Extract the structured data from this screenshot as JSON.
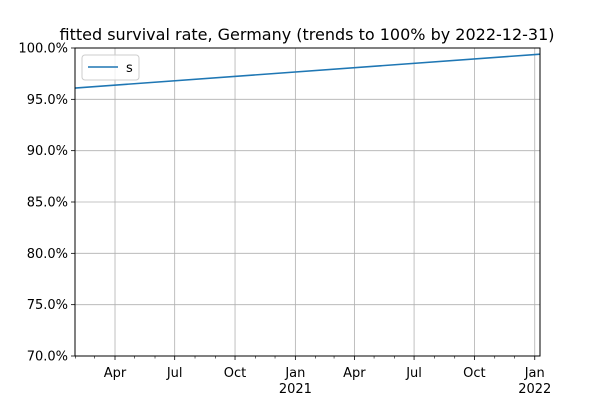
{
  "chart_data": {
    "type": "line",
    "title": "fitted survival rate, Germany (trends to 100% by 2022-12-31)",
    "xlabel": "",
    "ylabel": "",
    "xlim": [
      "2020-01-31",
      "2022-01-09"
    ],
    "ylim": [
      70.0,
      100.0
    ],
    "grid": true,
    "legend_position": "top-left",
    "colors": {
      "series": "#1f77b4",
      "grid": "#b0b0b0"
    },
    "y_ticks": [
      {
        "value": 70,
        "label": "70.0%"
      },
      {
        "value": 75,
        "label": "75.0%"
      },
      {
        "value": 80,
        "label": "80.0%"
      },
      {
        "value": 85,
        "label": "85.0%"
      },
      {
        "value": 90,
        "label": "90.0%"
      },
      {
        "value": 95,
        "label": "95.0%"
      },
      {
        "value": 100,
        "label": "100.0%"
      }
    ],
    "x_ticks": [
      {
        "date": "2020-04-01",
        "label": "Apr",
        "sublabel": ""
      },
      {
        "date": "2020-07-01",
        "label": "Jul",
        "sublabel": ""
      },
      {
        "date": "2020-10-01",
        "label": "Oct",
        "sublabel": ""
      },
      {
        "date": "2021-01-01",
        "label": "Jan",
        "sublabel": "2021"
      },
      {
        "date": "2021-04-01",
        "label": "Apr",
        "sublabel": ""
      },
      {
        "date": "2021-07-01",
        "label": "Jul",
        "sublabel": ""
      },
      {
        "date": "2021-10-01",
        "label": "Oct",
        "sublabel": ""
      },
      {
        "date": "2022-01-01",
        "label": "Jan",
        "sublabel": "2022"
      }
    ],
    "x_minor_ticks": [
      "2020-02-01",
      "2020-03-01",
      "2020-05-01",
      "2020-06-01",
      "2020-08-01",
      "2020-09-01",
      "2020-11-01",
      "2020-12-01",
      "2021-02-01",
      "2021-03-01",
      "2021-05-01",
      "2021-06-01",
      "2021-08-01",
      "2021-09-01",
      "2021-11-01",
      "2021-12-01"
    ],
    "series": [
      {
        "name": "s",
        "x": [
          "2020-01-31",
          "2022-01-09"
        ],
        "y": [
          96.1,
          99.4
        ]
      }
    ]
  }
}
